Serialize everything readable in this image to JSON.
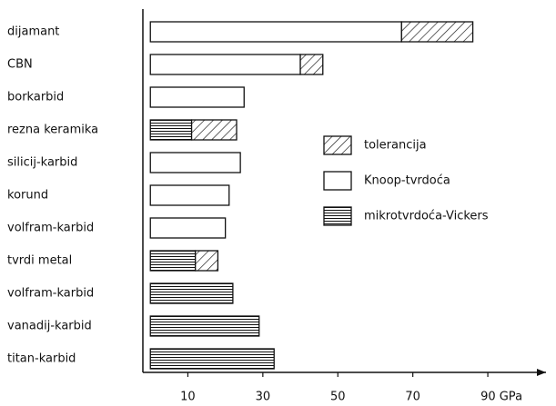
{
  "chart_data": {
    "type": "stacked-barh",
    "categories": [
      "dijamant",
      "CBN",
      "borkarbid",
      "rezna keramika",
      "silicij-karbid",
      "korund",
      "volfram-karbid",
      "tvrdi metal",
      "volfram-karbid",
      "vanadij-karbid",
      "titan-karbid"
    ],
    "series": [
      {
        "name": "tolerancija",
        "color": "#111111",
        "pattern": "hatch",
        "values": [
          19,
          6,
          null,
          12,
          null,
          null,
          null,
          6,
          null,
          null,
          null
        ]
      },
      {
        "name": "Knoop-tvrdoća",
        "color": "#111111",
        "pattern": "none",
        "values": [
          67,
          40,
          25,
          null,
          24,
          21,
          20,
          null,
          null,
          null,
          null
        ]
      },
      {
        "name": "mikrotvrdoća-Vickers",
        "color": "#111111",
        "pattern": "horizontal",
        "values": [
          null,
          null,
          null,
          11,
          null,
          null,
          null,
          12,
          22,
          29,
          33
        ]
      }
    ],
    "xlim": [
      -2,
      106
    ],
    "xticks": [
      10,
      30,
      50,
      70,
      {
        "value": 90,
        "label": "90 GPa"
      }
    ],
    "legend": "right"
  }
}
